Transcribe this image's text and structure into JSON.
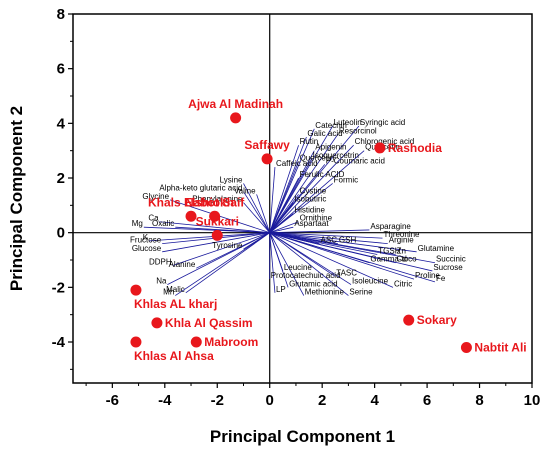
{
  "chart_data": {
    "type": "scatter",
    "title": "",
    "xlabel": "Principal Component 1",
    "ylabel": "Principal Component 2",
    "xlim": [
      -7.5,
      10
    ],
    "ylim": [
      -5.5,
      8
    ],
    "x_ticks": [
      "-6",
      "-4",
      "-2",
      "0",
      "2",
      "4",
      "6",
      "8",
      "10"
    ],
    "y_ticks": [
      "-4",
      "-2",
      "0",
      "2",
      "4",
      "6",
      "8"
    ],
    "marker_color": "#e8171c",
    "vector_color": "#1a1a9c",
    "samples": [
      {
        "name": "Ajwa Al Madinah",
        "x": -1.3,
        "y": 4.2
      },
      {
        "name": "Saffawy",
        "x": -0.1,
        "y": 2.7
      },
      {
        "name": "Rashodia",
        "x": 4.2,
        "y": 3.1
      },
      {
        "name": "Khals Elshiokh",
        "x": -3.0,
        "y": 0.6
      },
      {
        "name": "Nabot Saif",
        "x": -2.1,
        "y": 0.6
      },
      {
        "name": "Sukkari",
        "x": -2.0,
        "y": -0.1
      },
      {
        "name": "Khlas AL kharj",
        "x": -5.1,
        "y": -2.1
      },
      {
        "name": "Khla Al Qassim",
        "x": -4.3,
        "y": -3.3
      },
      {
        "name": "Khlas Al Ahsa",
        "x": -5.1,
        "y": -4.0
      },
      {
        "name": "Mabroom",
        "x": -2.8,
        "y": -4.0
      },
      {
        "name": "Sokary",
        "x": 5.3,
        "y": -3.2
      },
      {
        "name": "Nabtit Ali",
        "x": 7.5,
        "y": -4.2
      }
    ],
    "loadings": [
      {
        "name": "Catechin",
        "x": 1.7,
        "y": 3.8
      },
      {
        "name": "Luteolin",
        "x": 2.4,
        "y": 3.9
      },
      {
        "name": "Syringic acid",
        "x": 3.4,
        "y": 3.9
      },
      {
        "name": "Galic acid",
        "x": 1.4,
        "y": 3.5
      },
      {
        "name": "Resorcinol",
        "x": 2.6,
        "y": 3.6
      },
      {
        "name": "Rutin",
        "x": 1.1,
        "y": 3.2
      },
      {
        "name": "Chlorogenic acid",
        "x": 3.2,
        "y": 3.2
      },
      {
        "name": "Apigenin",
        "x": 1.7,
        "y": 3.0
      },
      {
        "name": "Quercetin",
        "x": 3.6,
        "y": 3.0
      },
      {
        "name": "Isoquercetrin",
        "x": 1.6,
        "y": 2.7
      },
      {
        "name": "Quercetin",
        "x": 1.1,
        "y": 2.6
      },
      {
        "name": "P-Coumaric acid",
        "x": 2.1,
        "y": 2.5
      },
      {
        "name": "Caffeic acid",
        "x": 0.2,
        "y": 2.4
      },
      {
        "name": "Ferulic ACID",
        "x": 1.1,
        "y": 2.0
      },
      {
        "name": "Formic",
        "x": 2.4,
        "y": 1.8
      },
      {
        "name": "Lysine",
        "x": -1.0,
        "y": 1.8
      },
      {
        "name": "Alpha-keto glutaric acid",
        "x": -1.0,
        "y": 1.5
      },
      {
        "name": "Cystine",
        "x": 1.1,
        "y": 1.4
      },
      {
        "name": "Valine",
        "x": -0.5,
        "y": 1.4
      },
      {
        "name": "Phenylalanine",
        "x": -1.0,
        "y": 1.1
      },
      {
        "name": "Isobutiric",
        "x": 0.9,
        "y": 1.1
      },
      {
        "name": "Glycine",
        "x": -3.8,
        "y": 1.2
      },
      {
        "name": "Histidine",
        "x": 0.9,
        "y": 0.7
      },
      {
        "name": "Ornithine",
        "x": 1.1,
        "y": 0.4
      },
      {
        "name": "Aspartaat",
        "x": 0.9,
        "y": 0.2
      },
      {
        "name": "Asparagine",
        "x": 3.8,
        "y": 0.1
      },
      {
        "name": "Mg",
        "x": -4.8,
        "y": 0.2
      },
      {
        "name": "Ca",
        "x": -4.2,
        "y": 0.4
      },
      {
        "name": "Oxalic",
        "x": -3.6,
        "y": 0.2
      },
      {
        "name": "K",
        "x": -4.6,
        "y": -0.3
      },
      {
        "name": "Fructose",
        "x": -4.1,
        "y": -0.4
      },
      {
        "name": "Glucose",
        "x": -4.1,
        "y": -0.7
      },
      {
        "name": "Tyrosine",
        "x": -1.0,
        "y": -0.6
      },
      {
        "name": "Threonine",
        "x": 4.3,
        "y": -0.2
      },
      {
        "name": "ASC",
        "x": 1.9,
        "y": -0.4
      },
      {
        "name": "GSH",
        "x": 2.6,
        "y": -0.4
      },
      {
        "name": "Arginie",
        "x": 4.5,
        "y": -0.4
      },
      {
        "name": "Glutamine",
        "x": 5.6,
        "y": -0.7
      },
      {
        "name": "Zn",
        "x": 4.8,
        "y": -0.8
      },
      {
        "name": "TGSH",
        "x": 4.1,
        "y": -0.8
      },
      {
        "name": "Succinic",
        "x": 6.3,
        "y": -1.1
      },
      {
        "name": "DDPH",
        "x": -3.7,
        "y": -1.2
      },
      {
        "name": "Alanine",
        "x": -2.8,
        "y": -1.3
      },
      {
        "name": "Leucine",
        "x": 0.5,
        "y": -1.4
      },
      {
        "name": "Gamma-toco",
        "x": 3.8,
        "y": -1.1
      },
      {
        "name": "Cd",
        "x": 4.8,
        "y": -1.1
      },
      {
        "name": "Sucrose",
        "x": 6.2,
        "y": -1.4
      },
      {
        "name": "Protocatechuic acid",
        "x": 0.0,
        "y": -1.7
      },
      {
        "name": "TASC",
        "x": 2.5,
        "y": -1.6
      },
      {
        "name": "Proline",
        "x": 5.5,
        "y": -1.7
      },
      {
        "name": "Glutamic acid",
        "x": 0.7,
        "y": -2.0
      },
      {
        "name": "Isoleucine",
        "x": 3.1,
        "y": -1.9
      },
      {
        "name": "Citric",
        "x": 4.7,
        "y": -2.0
      },
      {
        "name": "Fe",
        "x": 6.3,
        "y": -1.8
      },
      {
        "name": "Na",
        "x": -3.9,
        "y": -1.9
      },
      {
        "name": "Mn",
        "x": -3.6,
        "y": -2.3
      },
      {
        "name": "Malic",
        "x": -3.2,
        "y": -2.2
      },
      {
        "name": "LP",
        "x": 0.2,
        "y": -2.2
      },
      {
        "name": "Methionine",
        "x": 1.3,
        "y": -2.3
      },
      {
        "name": "Serine",
        "x": 3.0,
        "y": -2.3
      }
    ]
  }
}
